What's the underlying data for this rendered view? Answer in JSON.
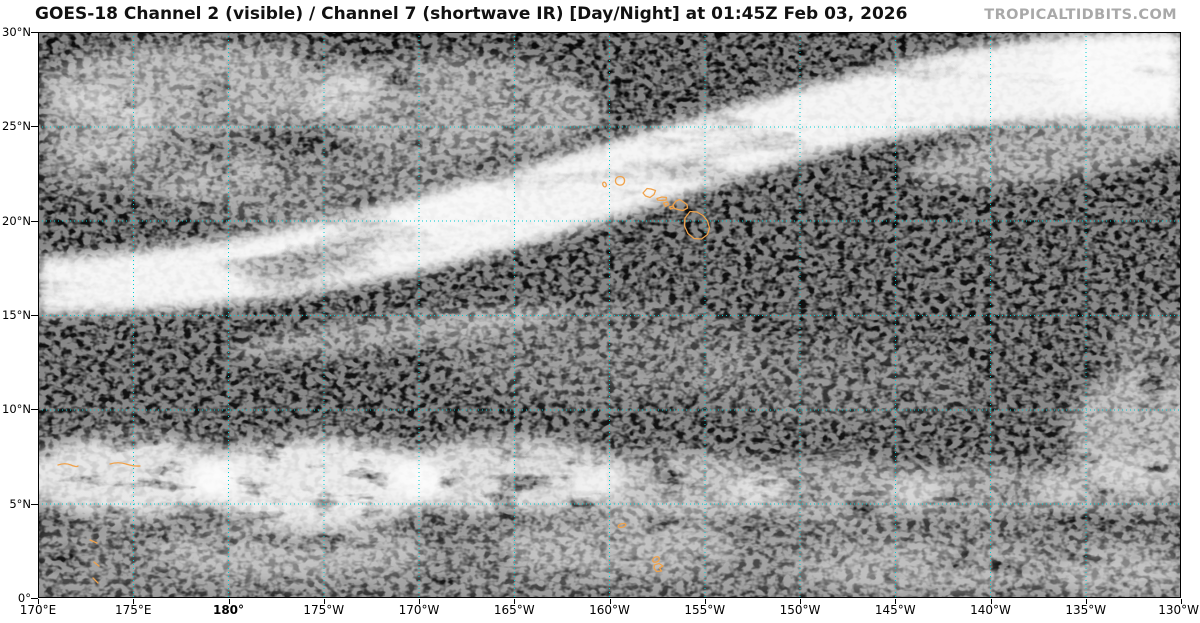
{
  "header": {
    "title": "GOES-18 Channel 2 (visible) / Channel 7 (shortwave IR) [Day/Night] at 01:45Z Feb 03, 2026",
    "watermark": "TROPICALTIDBITS.COM"
  },
  "map": {
    "lat_labels": [
      "30°N",
      "25°N",
      "20°N",
      "15°N",
      "10°N",
      "5°N",
      "0°"
    ],
    "lon_labels": [
      "170°E",
      "175°E",
      "180°",
      "175°W",
      "170°W",
      "165°W",
      "160°W",
      "155°W",
      "150°W",
      "145°W",
      "140°W",
      "135°W",
      "130°W"
    ],
    "lon_bold_label": "180°",
    "colors": {
      "grid": "#00cdd2",
      "coastline": "#f0a24a",
      "title_text": "#111111",
      "watermark_text": "#a9a9a9",
      "tick": "#000000",
      "ocean_dark": "#0b0b0b"
    }
  }
}
